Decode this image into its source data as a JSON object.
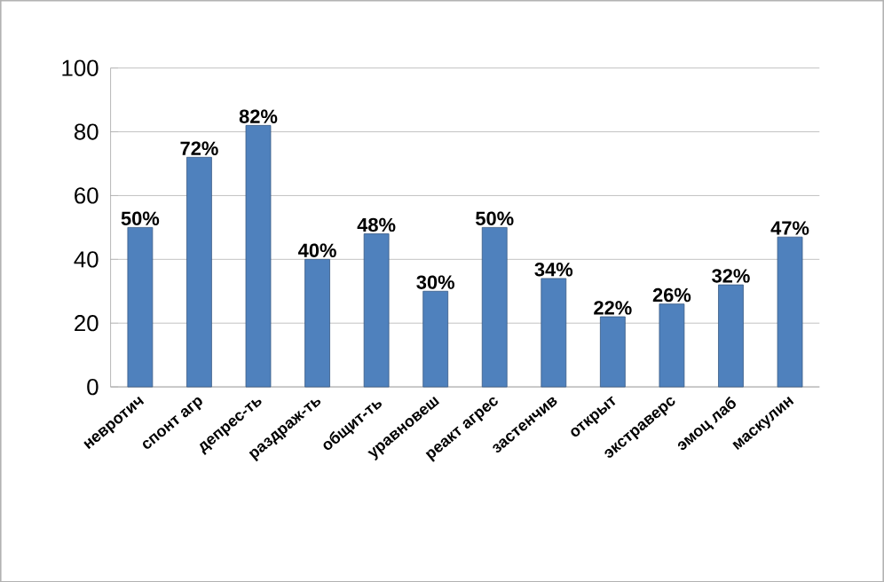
{
  "chart_data": {
    "type": "bar",
    "categories": [
      "невротич",
      "спонт агр",
      "депрес-ть",
      "раздраж-ть",
      "общит-ть",
      "уравновеш",
      "реакт агрес",
      "застенчив",
      "открыт",
      "экстраверс",
      "эмоц лаб",
      "маскулин"
    ],
    "values": [
      50,
      72,
      82,
      40,
      48,
      30,
      50,
      34,
      22,
      26,
      32,
      47
    ],
    "value_labels": [
      "50%",
      "72%",
      "82%",
      "40%",
      "48%",
      "30%",
      "50%",
      "34%",
      "22%",
      "26%",
      "32%",
      "47%"
    ],
    "color": "#4f81bd",
    "ylim": [
      0,
      100
    ],
    "yticks": [
      0,
      20,
      40,
      60,
      80,
      100
    ],
    "grid": "y"
  }
}
